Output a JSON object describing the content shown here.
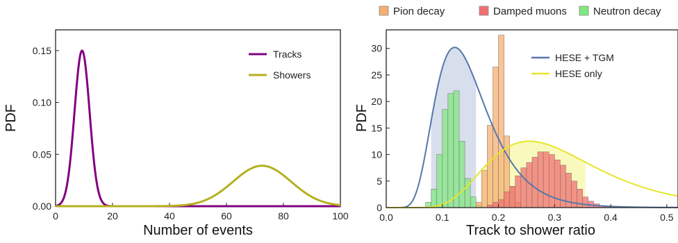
{
  "chart_data": [
    {
      "type": "line",
      "xlabel": "Number of events",
      "ylabel": "PDF",
      "xlim": [
        0,
        100
      ],
      "ylim": [
        0,
        0.17
      ],
      "xticks": [
        "0",
        "20",
        "40",
        "60",
        "80",
        "100"
      ],
      "yticks": [
        "0.00",
        "0.05",
        "0.10",
        "0.15"
      ],
      "legend_position": "top-right",
      "series": [
        {
          "name": "Tracks",
          "color": "#800080",
          "distribution": "gaussian",
          "mean": 9.3,
          "sd": 2.65,
          "peak": 0.15
        },
        {
          "name": "Showers",
          "color": "#b5b01e",
          "distribution": "gaussian",
          "mean": 72.5,
          "sd": 10.2,
          "peak": 0.039
        }
      ]
    },
    {
      "type": "histogram",
      "xlabel": "Track to shower ratio",
      "ylabel": "PDF",
      "xlim": [
        0.0,
        0.52
      ],
      "ylim": [
        0,
        33.5
      ],
      "xticks": [
        "0.0",
        "0.1",
        "0.2",
        "0.3",
        "0.4",
        "0.5"
      ],
      "yticks": [
        "0",
        "5",
        "10",
        "15",
        "20",
        "25",
        "30"
      ],
      "top_legend": [
        {
          "name": "Pion decay",
          "color": "#f5b072"
        },
        {
          "name": "Damped muons",
          "color": "#f07070"
        },
        {
          "name": "Neutron decay",
          "color": "#80e880"
        }
      ],
      "curve_legend": [
        {
          "name": "HESE + TGM",
          "color": "#5577aa"
        },
        {
          "name": "HESE only",
          "color": "#e6e62a"
        }
      ],
      "legend_position": "top-right",
      "bin_width": 0.01,
      "histograms": [
        {
          "name": "Neutron decay",
          "color": "#80e880",
          "bin_start": 0.07,
          "values": [
            1,
            3.5,
            10,
            18.5,
            21.5,
            22,
            12.5,
            5.5,
            2,
            0.5
          ]
        },
        {
          "name": "Pion decay",
          "color": "#f5b072",
          "bin_start": 0.16,
          "values": [
            1,
            7,
            15.5,
            26.5,
            32.5,
            13.5,
            4,
            1
          ]
        },
        {
          "name": "Damped muons",
          "color": "#f07070",
          "bin_start": 0.18,
          "values": [
            0.5,
            1,
            1.5,
            3,
            4,
            6,
            7.5,
            8.5,
            9.5,
            10.5,
            10.5,
            10,
            9,
            8,
            6.5,
            5,
            3.5,
            2,
            1.2,
            0.7,
            0.4,
            0.2
          ]
        }
      ],
      "curves": [
        {
          "name": "HESE + TGM",
          "color": "#5577aa",
          "distribution": "lognormal",
          "mode": 0.122,
          "peak": 30.2,
          "shaded_range": [
            0.08,
            0.16
          ]
        },
        {
          "name": "HESE only",
          "color": "#e6e62a",
          "distribution": "lognormal",
          "mode": 0.255,
          "peak": 12.5,
          "shaded_range": [
            0.17,
            0.355
          ]
        }
      ]
    }
  ]
}
